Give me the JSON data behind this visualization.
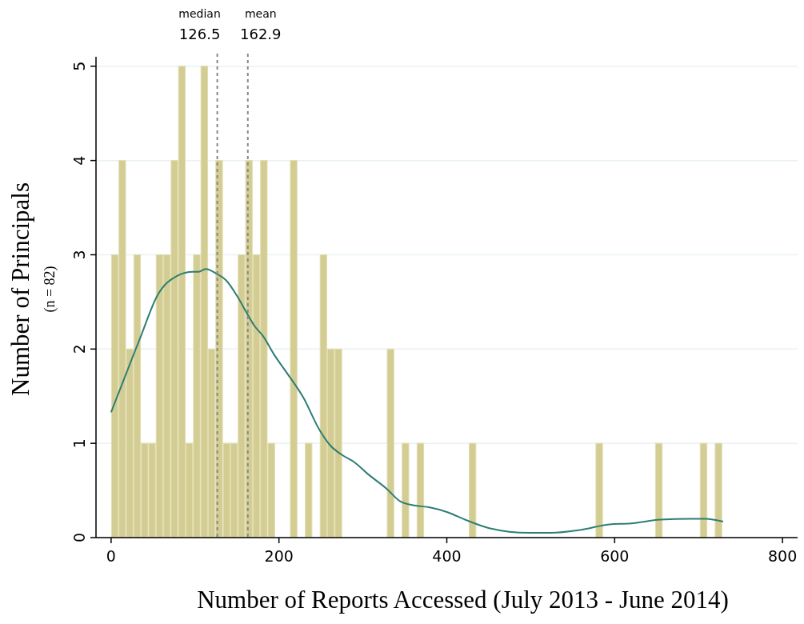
{
  "chart_data": {
    "type": "histogram",
    "xlabel": "Number of Reports Accessed (July 2013 - June 2014)",
    "ylabel": "Number of Principals",
    "annotations": [
      "(n = 82)"
    ],
    "bins": [
      0,
      8.88,
      17.76,
      26.64,
      35.52,
      44.4,
      53.28,
      62.16,
      71.04,
      79.92,
      88.8,
      97.68,
      106.56,
      115.44,
      124.32,
      133.2,
      142.08,
      150.96,
      159.84,
      168.72,
      177.6,
      186.48,
      195.36,
      204.24,
      213.12,
      222,
      230.88,
      239.76,
      248.64,
      257.52,
      266.4,
      275.28,
      284.16,
      293.04,
      301.92,
      310.8,
      319.68,
      328.56,
      337.44,
      346.32,
      355.2,
      364.08,
      372.96,
      381.84,
      390.72,
      399.6,
      408.48,
      417.36,
      426.24,
      435.12,
      444,
      452.88,
      461.76,
      470.64,
      479.52,
      488.4,
      497.28,
      506.16,
      515.04,
      523.92,
      532.8,
      541.68,
      550.56,
      559.44,
      568.32,
      577.2,
      586.08,
      594.96,
      603.84,
      612.72,
      621.6,
      630.48,
      639.36,
      648.24,
      657.12,
      666,
      674.88,
      683.76,
      692.64,
      701.52,
      710.4,
      719.28,
      728.16
    ],
    "series": [
      {
        "color": "#d3cd93",
        "values": [
          3,
          4,
          2,
          3,
          1,
          1,
          3,
          3,
          4,
          5,
          1,
          3,
          5,
          2,
          4,
          1,
          1,
          3,
          4,
          3,
          4,
          1,
          0,
          0,
          4,
          0,
          1,
          0,
          3,
          2,
          2,
          0,
          0,
          0,
          0,
          0,
          0,
          2,
          0,
          1,
          0,
          1,
          0,
          0,
          0,
          0,
          0,
          0,
          1,
          0,
          0,
          0,
          0,
          0,
          0,
          0,
          0,
          0,
          0,
          0,
          0,
          0,
          0,
          0,
          0,
          1,
          0,
          0,
          0,
          0,
          0,
          0,
          0,
          1,
          0,
          0,
          0,
          0,
          0,
          1,
          0,
          1
        ]
      },
      {
        "type": "line",
        "color": "#2e7d74",
        "x": [
          0,
          18.4,
          35.6,
          54.7,
          79.5,
          96.8,
          104.4,
          112.8,
          125.4,
          136.9,
          150.3,
          161.8,
          171.3,
          180.9,
          194.3,
          207.6,
          229.4,
          247.8,
          260.9,
          274.6,
          289.9,
          305.2,
          328.1,
          345.3,
          362.5,
          379.7,
          400.7,
          424.7,
          450.5,
          498.3,
          523.8,
          558.8,
          593.9,
          619.4,
          654.4,
          689.5,
          708.6,
          729.3
        ],
        "values": [
          1.33,
          1.75,
          2.14,
          2.56,
          2.78,
          2.82,
          2.82,
          2.85,
          2.8,
          2.73,
          2.56,
          2.38,
          2.24,
          2.14,
          1.94,
          1.77,
          1.48,
          1.15,
          0.98,
          0.88,
          0.8,
          0.68,
          0.52,
          0.38,
          0.34,
          0.32,
          0.27,
          0.18,
          0.1,
          0.05,
          0.05,
          0.08,
          0.14,
          0.15,
          0.19,
          0.2,
          0.2,
          0.17
        ]
      }
    ],
    "ref_lines": [
      {
        "axis": "x",
        "value": 126.5,
        "label": "median\n126.5",
        "color": "#888888",
        "line_style": "dashed"
      },
      {
        "axis": "x",
        "value": 162.9,
        "label": "mean\n162.9",
        "color": "#888888",
        "line_style": "dashed"
      }
    ],
    "xlim": [
      -18,
      818
    ],
    "xticks": [
      0,
      200,
      400,
      600,
      800
    ],
    "ylim": [
      0,
      5.1
    ],
    "yticks": [
      0,
      1,
      2,
      3,
      4,
      5
    ],
    "grid": "y"
  }
}
